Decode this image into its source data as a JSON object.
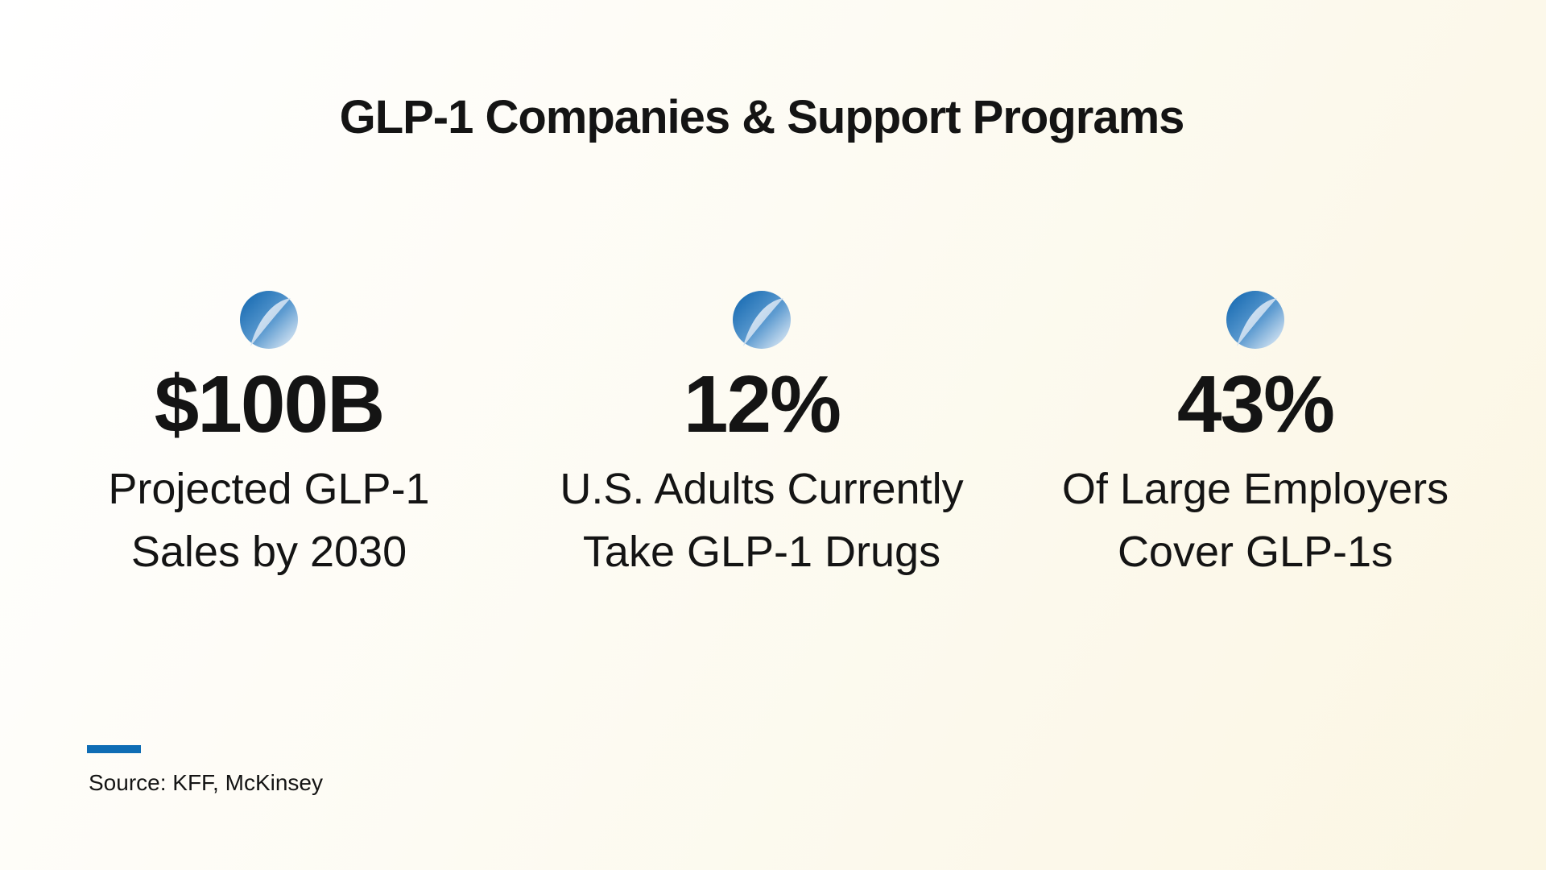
{
  "title": "GLP-1 Companies & Support Programs",
  "stats": [
    {
      "value": "$100B",
      "line1": "Projected GLP-1",
      "line2": "Sales by 2030",
      "icon": "sphere-icon"
    },
    {
      "value": "12%",
      "line1": "U.S. Adults Currently",
      "line2": "Take GLP-1 Drugs",
      "icon": "sphere-icon"
    },
    {
      "value": "43%",
      "line1": "Of Large Employers",
      "line2": "Cover GLP-1s",
      "icon": "sphere-icon"
    }
  ],
  "source": "Source: KFF, McKinsey",
  "colors": {
    "accent": "#0f6db5",
    "text": "#141414"
  }
}
